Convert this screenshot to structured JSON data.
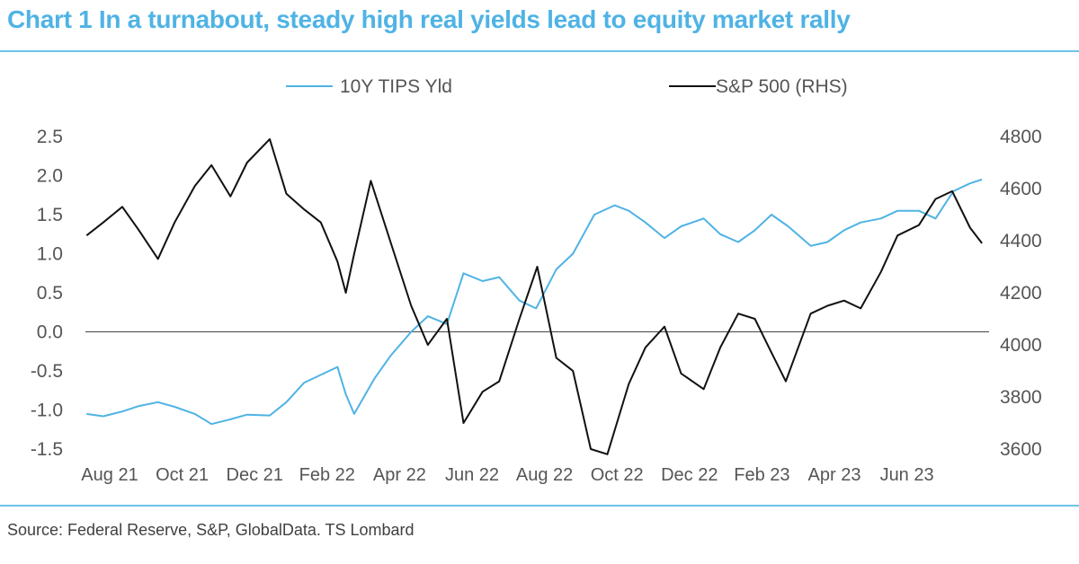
{
  "title": "Chart 1 In a turnabout, steady high real yields lead to equity market rally",
  "source": "Source: Federal Reserve, S&P, GlobalData. TS Lombard",
  "colors": {
    "accent": "#4fb3e4",
    "tips": "#4fb3e4",
    "spx": "#111111"
  },
  "chart_data": {
    "type": "line",
    "title": "Chart 1 In a turnabout, steady high real yields lead to equity market rally",
    "legend_position": "top",
    "grid": false,
    "x_tick_labels": [
      "Aug 21",
      "Oct 21",
      "Dec 21",
      "Feb 22",
      "Apr 22",
      "Jun 22",
      "Aug 22",
      "Oct 22",
      "Dec 22",
      "Feb 23",
      "Apr 23",
      "Jun 23"
    ],
    "x_range": [
      "2021-08-01",
      "2023-08-31"
    ],
    "y_left": {
      "ticks": [
        "2.5",
        "2.0",
        "1.5",
        "1.0",
        "0.5",
        "0.0",
        "-0.5",
        "-1.0",
        "-1.5"
      ],
      "range": [
        -1.5,
        2.5
      ]
    },
    "y_right": {
      "ticks": [
        "4800",
        "4600",
        "4400",
        "4200",
        "4000",
        "3800",
        "3600"
      ],
      "range": [
        3600,
        4800
      ]
    },
    "series": [
      {
        "name": "10Y TIPS Yld",
        "axis": "left",
        "color": "#4fb3e4",
        "points": [
          [
            "2021-08-02",
            -1.05
          ],
          [
            "2021-08-16",
            -1.08
          ],
          [
            "2021-09-01",
            -1.02
          ],
          [
            "2021-09-15",
            -0.95
          ],
          [
            "2021-10-01",
            -0.9
          ],
          [
            "2021-10-15",
            -0.96
          ],
          [
            "2021-11-01",
            -1.05
          ],
          [
            "2021-11-15",
            -1.18
          ],
          [
            "2021-12-01",
            -1.12
          ],
          [
            "2021-12-15",
            -1.06
          ],
          [
            "2022-01-03",
            -1.07
          ],
          [
            "2022-01-17",
            -0.9
          ],
          [
            "2022-02-01",
            -0.65
          ],
          [
            "2022-02-15",
            -0.55
          ],
          [
            "2022-03-01",
            -0.45
          ],
          [
            "2022-03-08",
            -0.8
          ],
          [
            "2022-03-15",
            -1.05
          ],
          [
            "2022-04-01",
            -0.6
          ],
          [
            "2022-04-15",
            -0.3
          ],
          [
            "2022-05-02",
            0.0
          ],
          [
            "2022-05-16",
            0.2
          ],
          [
            "2022-06-01",
            0.1
          ],
          [
            "2022-06-15",
            0.75
          ],
          [
            "2022-07-01",
            0.65
          ],
          [
            "2022-07-15",
            0.7
          ],
          [
            "2022-08-01",
            0.4
          ],
          [
            "2022-08-15",
            0.3
          ],
          [
            "2022-09-01",
            0.8
          ],
          [
            "2022-09-15",
            1.0
          ],
          [
            "2022-10-03",
            1.5
          ],
          [
            "2022-10-20",
            1.62
          ],
          [
            "2022-11-01",
            1.55
          ],
          [
            "2022-11-15",
            1.4
          ],
          [
            "2022-12-01",
            1.2
          ],
          [
            "2022-12-15",
            1.35
          ],
          [
            "2023-01-03",
            1.45
          ],
          [
            "2023-01-17",
            1.25
          ],
          [
            "2023-02-01",
            1.15
          ],
          [
            "2023-02-15",
            1.3
          ],
          [
            "2023-03-01",
            1.5
          ],
          [
            "2023-03-15",
            1.35
          ],
          [
            "2023-04-03",
            1.1
          ],
          [
            "2023-04-17",
            1.15
          ],
          [
            "2023-05-01",
            1.3
          ],
          [
            "2023-05-15",
            1.4
          ],
          [
            "2023-06-01",
            1.45
          ],
          [
            "2023-06-15",
            1.55
          ],
          [
            "2023-07-03",
            1.55
          ],
          [
            "2023-07-17",
            1.45
          ],
          [
            "2023-08-01",
            1.8
          ],
          [
            "2023-08-15",
            1.9
          ],
          [
            "2023-08-25",
            1.95
          ]
        ]
      },
      {
        "name": "S&P 500 (RHS)",
        "axis": "right",
        "color": "#111111",
        "points": [
          [
            "2021-08-02",
            4420
          ],
          [
            "2021-08-16",
            4470
          ],
          [
            "2021-09-01",
            4530
          ],
          [
            "2021-09-15",
            4440
          ],
          [
            "2021-10-01",
            4330
          ],
          [
            "2021-10-15",
            4470
          ],
          [
            "2021-11-01",
            4610
          ],
          [
            "2021-11-15",
            4690
          ],
          [
            "2021-12-01",
            4570
          ],
          [
            "2021-12-15",
            4700
          ],
          [
            "2022-01-03",
            4790
          ],
          [
            "2022-01-17",
            4580
          ],
          [
            "2022-02-01",
            4520
          ],
          [
            "2022-02-15",
            4470
          ],
          [
            "2022-03-01",
            4320
          ],
          [
            "2022-03-08",
            4200
          ],
          [
            "2022-03-15",
            4350
          ],
          [
            "2022-03-29",
            4630
          ],
          [
            "2022-04-15",
            4390
          ],
          [
            "2022-05-02",
            4150
          ],
          [
            "2022-05-16",
            4000
          ],
          [
            "2022-06-01",
            4100
          ],
          [
            "2022-06-15",
            3700
          ],
          [
            "2022-07-01",
            3820
          ],
          [
            "2022-07-15",
            3860
          ],
          [
            "2022-08-01",
            4100
          ],
          [
            "2022-08-16",
            4300
          ],
          [
            "2022-09-01",
            3950
          ],
          [
            "2022-09-15",
            3900
          ],
          [
            "2022-09-30",
            3600
          ],
          [
            "2022-10-14",
            3580
          ],
          [
            "2022-11-01",
            3850
          ],
          [
            "2022-11-15",
            3990
          ],
          [
            "2022-12-01",
            4070
          ],
          [
            "2022-12-15",
            3890
          ],
          [
            "2023-01-03",
            3830
          ],
          [
            "2023-01-17",
            3990
          ],
          [
            "2023-02-01",
            4120
          ],
          [
            "2023-02-15",
            4100
          ],
          [
            "2023-03-01",
            3970
          ],
          [
            "2023-03-13",
            3860
          ],
          [
            "2023-04-03",
            4120
          ],
          [
            "2023-04-17",
            4150
          ],
          [
            "2023-05-01",
            4170
          ],
          [
            "2023-05-15",
            4140
          ],
          [
            "2023-06-01",
            4280
          ],
          [
            "2023-06-15",
            4420
          ],
          [
            "2023-07-03",
            4460
          ],
          [
            "2023-07-17",
            4560
          ],
          [
            "2023-07-31",
            4590
          ],
          [
            "2023-08-15",
            4450
          ],
          [
            "2023-08-25",
            4390
          ]
        ]
      }
    ]
  }
}
